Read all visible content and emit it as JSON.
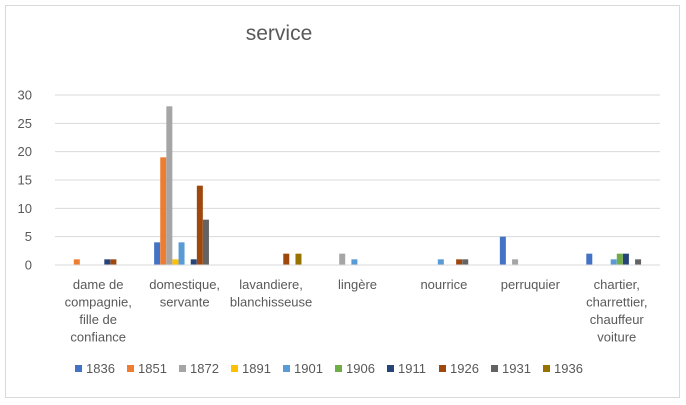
{
  "chart_data": {
    "type": "bar",
    "title": "service",
    "xlabel": "",
    "ylabel": "",
    "ylim": [
      0,
      30
    ],
    "yticks": [
      0,
      5,
      10,
      15,
      20,
      25,
      30
    ],
    "grid": true,
    "legend_position": "bottom",
    "categories": [
      [
        "dame de",
        "compagnie,",
        "fille de",
        "confiance"
      ],
      [
        "domestique,",
        "servante"
      ],
      [
        "lavandiere,",
        "blanchisseuse"
      ],
      [
        "lingère"
      ],
      [
        "nourrice"
      ],
      [
        "perruquier"
      ],
      [
        "chartier,",
        "charrettier,",
        "chauffeur",
        "voiture"
      ]
    ],
    "series": [
      {
        "name": "1836",
        "color": "#4472c4",
        "values": [
          0,
          4,
          0,
          0,
          0,
          5,
          2
        ]
      },
      {
        "name": "1851",
        "color": "#ed7d31",
        "values": [
          1,
          19,
          0,
          0,
          0,
          0,
          0
        ]
      },
      {
        "name": "1872",
        "color": "#a5a5a5",
        "values": [
          0,
          28,
          0,
          2,
          0,
          1,
          0
        ]
      },
      {
        "name": "1891",
        "color": "#ffc000",
        "values": [
          0,
          1,
          0,
          0,
          0,
          0,
          0
        ]
      },
      {
        "name": "1901",
        "color": "#5b9bd5",
        "values": [
          0,
          4,
          0,
          1,
          1,
          0,
          1
        ]
      },
      {
        "name": "1906",
        "color": "#70ad47",
        "values": [
          0,
          0,
          0,
          0,
          0,
          0,
          2
        ]
      },
      {
        "name": "1911",
        "color": "#264478",
        "values": [
          1,
          1,
          0,
          0,
          0,
          0,
          2
        ]
      },
      {
        "name": "1926",
        "color": "#9e480e",
        "values": [
          1,
          14,
          2,
          0,
          1,
          0,
          0
        ]
      },
      {
        "name": "1931",
        "color": "#636363",
        "values": [
          0,
          8,
          0,
          0,
          1,
          0,
          1
        ]
      },
      {
        "name": "1936",
        "color": "#997300",
        "values": [
          0,
          0,
          2,
          0,
          0,
          0,
          0
        ]
      }
    ]
  }
}
